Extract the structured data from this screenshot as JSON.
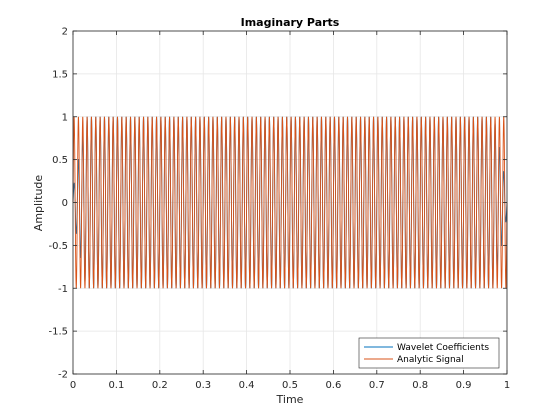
{
  "chart_data": {
    "type": "line",
    "title": "Imaginary Parts",
    "xlabel": "Time",
    "ylabel": "Amplitude",
    "xlim": [
      0,
      1
    ],
    "ylim": [
      -2,
      2
    ],
    "x_ticks": [
      0,
      0.1,
      0.2,
      0.3,
      0.4,
      0.5,
      0.6,
      0.7,
      0.8,
      0.9,
      1
    ],
    "x_tick_labels": [
      "0",
      "0.1",
      "0.2",
      "0.3",
      "0.4",
      "0.5",
      "0.6",
      "0.7",
      "0.8",
      "0.9",
      "1"
    ],
    "y_ticks": [
      -2,
      -1.5,
      -1,
      -0.5,
      0,
      0.5,
      1,
      1.5,
      2
    ],
    "y_tick_labels": [
      "-2",
      "-1.5",
      "-1",
      "-0.5",
      "0",
      "0.5",
      "1",
      "1.5",
      "2"
    ],
    "grid": true,
    "legend_location": "bottom-right",
    "series": [
      {
        "name": "Wavelet Coefficients",
        "color": "#0072BD",
        "function": "sine",
        "frequency_hz": 100,
        "amplitude": 1
      },
      {
        "name": "Analytic Signal",
        "color": "#D95319",
        "function": "sine",
        "frequency_hz": 100,
        "amplitude": 1
      }
    ]
  }
}
